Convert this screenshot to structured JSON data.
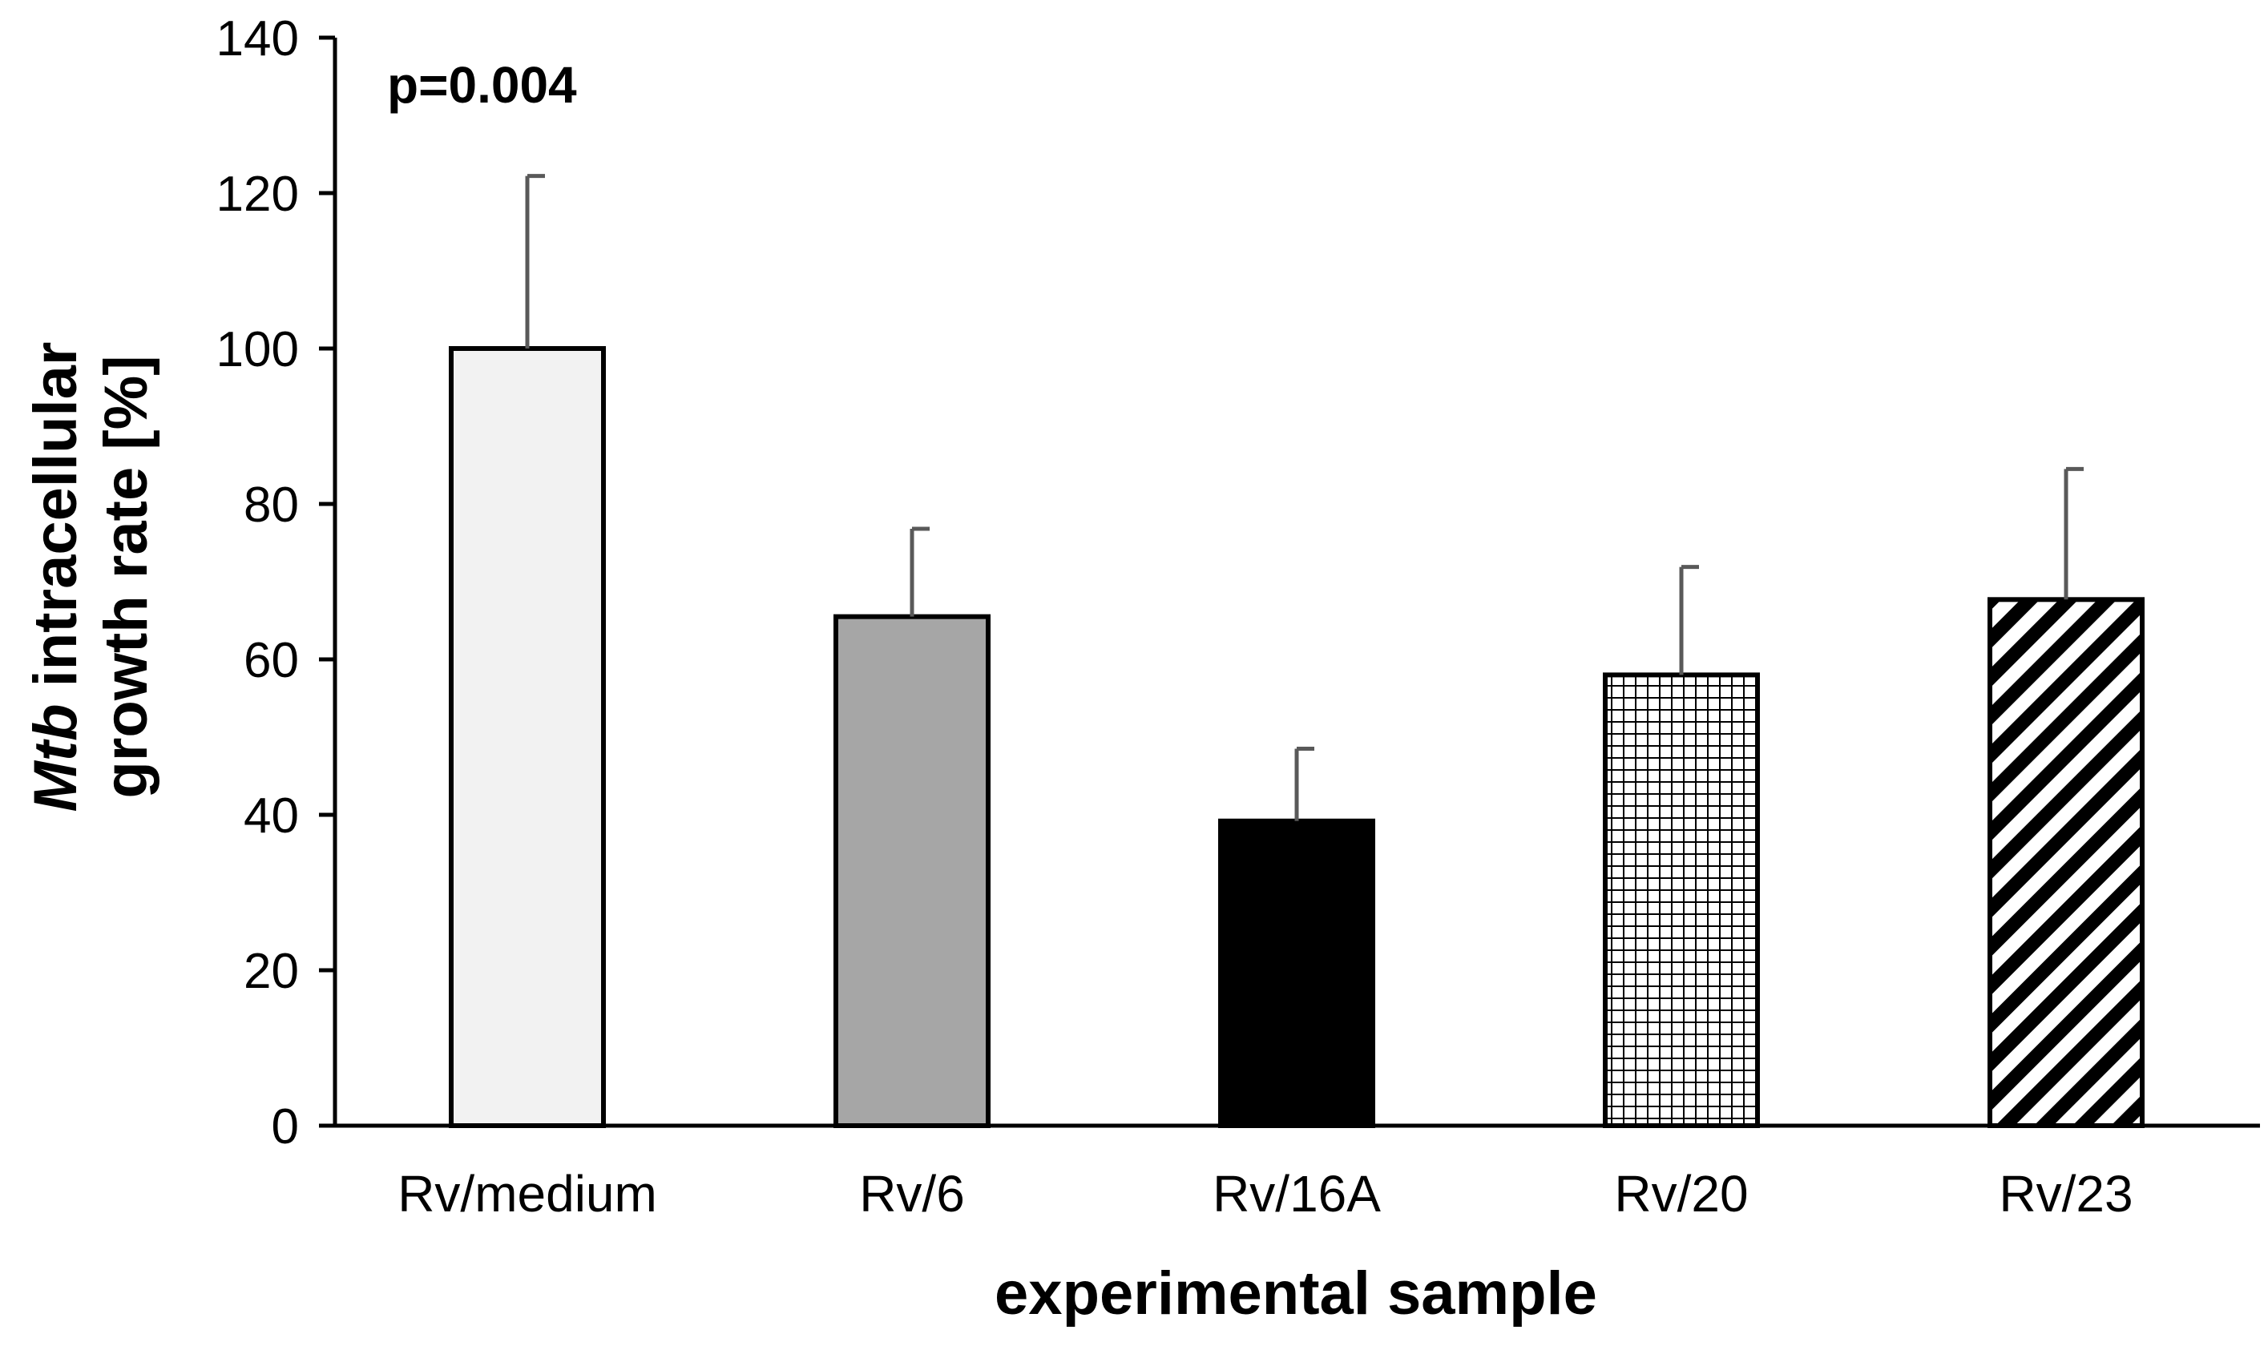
{
  "chart_data": {
    "type": "bar",
    "title": "",
    "xlabel": "experimental sample",
    "ylabel": {
      "italic_part": "Mtb",
      "line1_rest": " intracellular",
      "line2": "growth rate [%]"
    },
    "annotation": "p=0.004",
    "ylim": [
      0,
      140
    ],
    "yticks": [
      0,
      20,
      40,
      60,
      80,
      100,
      120,
      140
    ],
    "categories": [
      "Rv/medium",
      "Rv/6",
      "Rv/16A",
      "Rv/20",
      "Rv/23"
    ],
    "values": [
      100,
      65.5,
      39.2,
      58,
      67.7
    ],
    "error_upper": [
      122.2,
      76.8,
      48.5,
      71.9,
      84.5
    ],
    "fills": [
      {
        "kind": "solid",
        "color": "#f2f2f2"
      },
      {
        "kind": "solid",
        "color": "#a6a6a6"
      },
      {
        "kind": "solid",
        "color": "#000000"
      },
      {
        "kind": "grid",
        "color": "#000000"
      },
      {
        "kind": "diagonal",
        "color": "#000000"
      }
    ],
    "bar_outline_color": "#000000",
    "error_bar_color": "#595959",
    "axis_color": "#000000"
  }
}
